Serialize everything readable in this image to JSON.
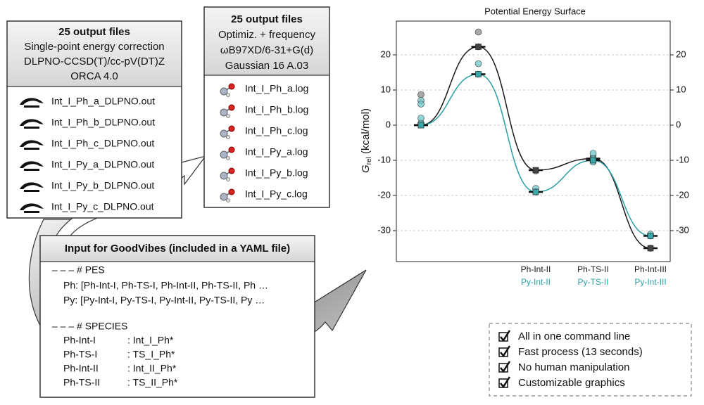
{
  "orca_box": {
    "header": [
      "25 output files",
      "Single-point energy correction",
      "DLPNO-CCSD(T)/cc-pV(DT)Z",
      "ORCA 4.0"
    ],
    "files": [
      "Int_I_Ph_a_DLPNO.out",
      "Int_I_Ph_b_DLPNO.out",
      "Int_I_Ph_c_DLPNO.out",
      "Int_I_Py_a_DLPNO.out",
      "Int_I_Py_b_DLPNO.out",
      "Int_I_Py_c_DLPNO.out"
    ]
  },
  "gaussian_box": {
    "header": [
      "25 output files",
      "Optimiz. + frequency",
      "ωB97XD/6-31+G(d)",
      "Gaussian 16 A.03"
    ],
    "files": [
      "Int_I_Ph_a.log",
      "Int_I_Ph_b.log",
      "Int_I_Ph_c.log",
      "Int_I_Py_a.log",
      "Int_I_Py_b.log",
      "Int_I_Py_c.log"
    ]
  },
  "goodvibes_box": {
    "title": "Input for GoodVibes (included in a YAML file)",
    "pes_heading": "– – – # PES",
    "pes_lines": [
      "Ph: [Ph-Int-I, Ph-TS-I, Ph-Int-II, Ph-TS-II, Ph …",
      "Py: [Py-Int-I, Py-TS-I, Py-Int-II, Py-TS-II, Py …"
    ],
    "species_heading": "– – – # SPECIES",
    "species": [
      [
        "Ph-Int-I",
        ": Int_I_Ph*"
      ],
      [
        "Ph-TS-I",
        ": TS_I_Ph*"
      ],
      [
        "Ph-Int-II",
        ": Int_II_Ph*"
      ],
      [
        "Ph-TS-II",
        ": TS_II_Ph*"
      ]
    ]
  },
  "checklist": [
    "All in one command line",
    "Fast process (13 seconds)",
    "No human manipulation",
    "Customizable graphics"
  ],
  "chart_data": {
    "type": "line",
    "title": "Potential Energy Surface",
    "ylabel": {
      "symbol": "G",
      "subscript": "rel",
      "unit": " (kcal/mol)"
    },
    "ylim": [
      -38.8,
      29.6
    ],
    "yticks": [
      -30,
      -20,
      -10,
      0,
      10,
      20
    ],
    "grid": true,
    "series": [
      {
        "name": "Ph",
        "color": "#1a1a1a",
        "marker_color": "#444444",
        "dot_color": "#8a8a8a",
        "labels": [
          null,
          null,
          "Ph-Int-II",
          "Ph-TS-II",
          "Ph-Int-III"
        ],
        "values": [
          0,
          22.3,
          -12.8,
          -9.5,
          -35
        ],
        "conformers": [
          [
            8.7,
            0.5
          ],
          [
            26.5,
            22.3
          ],
          [
            -13
          ],
          [
            -9.5
          ],
          [
            -35
          ]
        ]
      },
      {
        "name": "Py",
        "color": "#2aa0a6",
        "marker_color": "#3aa8aa",
        "dot_color": "#6cc6c8",
        "labels": [
          null,
          null,
          "Py-Int-II",
          "Py-TS-II",
          "Py-Int-III"
        ],
        "values": [
          0,
          14.5,
          -19,
          -10,
          -31.5
        ],
        "conformers": [
          [
            7,
            6,
            2,
            0.5
          ],
          [
            17.5,
            14.5
          ],
          [
            -18,
            -19
          ],
          [
            -8,
            -9.5,
            -10.5
          ],
          [
            -31,
            -31.5
          ]
        ]
      }
    ]
  }
}
